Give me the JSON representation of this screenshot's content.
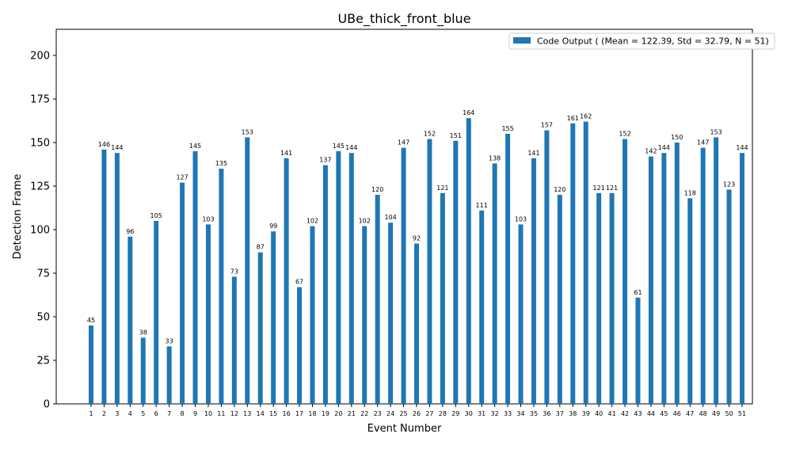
{
  "chart_data": {
    "type": "bar",
    "title": "UBe_thick_front_blue",
    "xlabel": "Event Number",
    "ylabel": "Detection Frame",
    "ylim": [
      0,
      215
    ],
    "yticks": [
      0,
      25,
      50,
      75,
      100,
      125,
      150,
      175,
      200
    ],
    "grid": false,
    "legend_position": "top-right",
    "categories": [
      "1",
      "2",
      "3",
      "4",
      "5",
      "6",
      "7",
      "8",
      "9",
      "10",
      "11",
      "12",
      "13",
      "14",
      "15",
      "16",
      "17",
      "18",
      "19",
      "20",
      "21",
      "22",
      "23",
      "24",
      "25",
      "26",
      "27",
      "28",
      "29",
      "30",
      "31",
      "32",
      "33",
      "34",
      "35",
      "36",
      "37",
      "38",
      "39",
      "40",
      "41",
      "42",
      "43",
      "44",
      "45",
      "46",
      "47",
      "48",
      "49",
      "50",
      "51"
    ],
    "series": [
      {
        "name": "Code Output ( (Mean = 122.39, Std = 32.79, N = 51)",
        "color": "#1f77b4",
        "values": [
          45,
          146,
          144,
          96,
          38,
          105,
          33,
          127,
          145,
          103,
          135,
          73,
          153,
          87,
          99,
          141,
          67,
          102,
          137,
          145,
          144,
          102,
          120,
          104,
          147,
          92,
          152,
          121,
          151,
          164,
          111,
          138,
          155,
          103,
          141,
          157,
          120,
          161,
          162,
          121,
          121,
          152,
          61,
          142,
          144,
          150,
          118,
          147,
          153,
          123,
          144
        ]
      }
    ]
  }
}
